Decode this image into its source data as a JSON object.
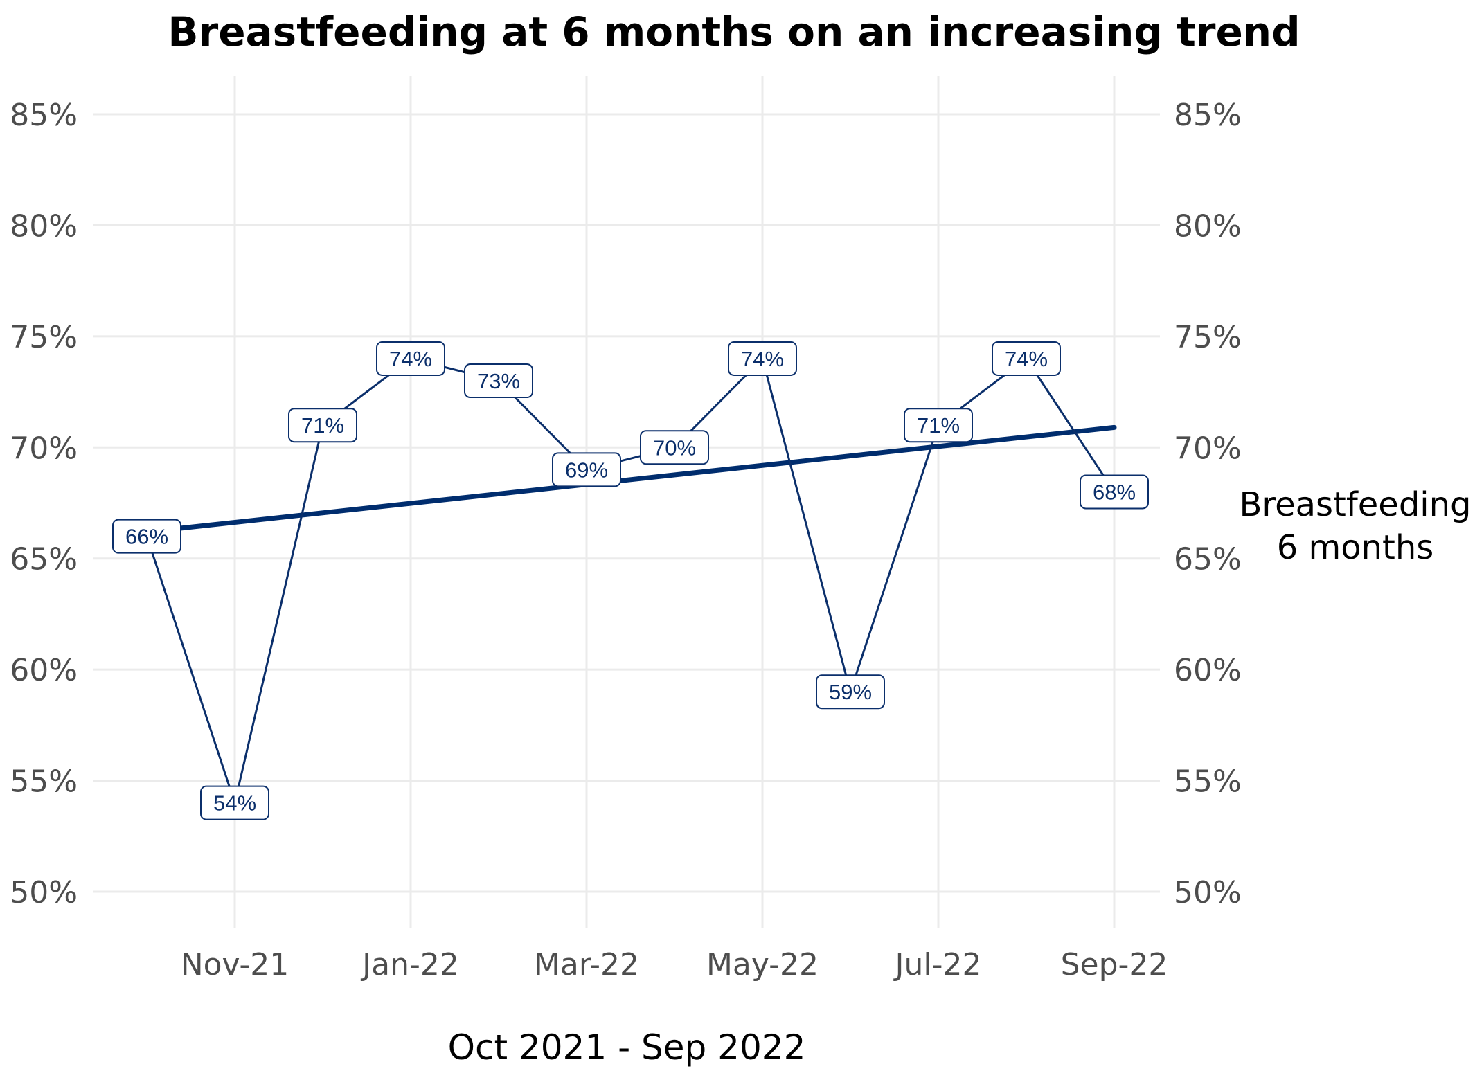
{
  "chart_data": {
    "type": "line",
    "title": "Breastfeeding at 6 months on an increasing trend",
    "xlabel": "Oct 2021 - Sep 2022",
    "ylabel": "",
    "x": [
      "Oct-21",
      "Nov-21",
      "Dec-21",
      "Jan-22",
      "Feb-22",
      "Mar-22",
      "Apr-22",
      "May-22",
      "Jun-22",
      "Jul-22",
      "Aug-22",
      "Sep-22"
    ],
    "x_tick_labels": [
      "Nov-21",
      "Jan-22",
      "Mar-22",
      "May-22",
      "Jul-22",
      "Sep-22"
    ],
    "ylim": [
      0.5,
      0.85
    ],
    "y_ticks": [
      0.5,
      0.55,
      0.6,
      0.65,
      0.7,
      0.75,
      0.8,
      0.85
    ],
    "y_tick_labels": [
      "50%",
      "55%",
      "60%",
      "65%",
      "70%",
      "75%",
      "80%",
      "85%"
    ],
    "secondary_y_axis": true,
    "grid": true,
    "series": [
      {
        "name": "Breastfeeding 6 months",
        "name_lines": [
          "Breastfeeding",
          "6 months"
        ],
        "values": [
          0.66,
          0.54,
          0.71,
          0.74,
          0.73,
          0.69,
          0.7,
          0.74,
          0.59,
          0.71,
          0.74,
          0.68
        ],
        "labels": [
          "66%",
          "54%",
          "71%",
          "74%",
          "73%",
          "69%",
          "70%",
          "74%",
          "59%",
          "71%",
          "74%",
          "68%"
        ],
        "color": "#0b2f6b"
      }
    ],
    "trend": {
      "start": 0.662,
      "end": 0.709,
      "color": "#002d6e"
    }
  }
}
